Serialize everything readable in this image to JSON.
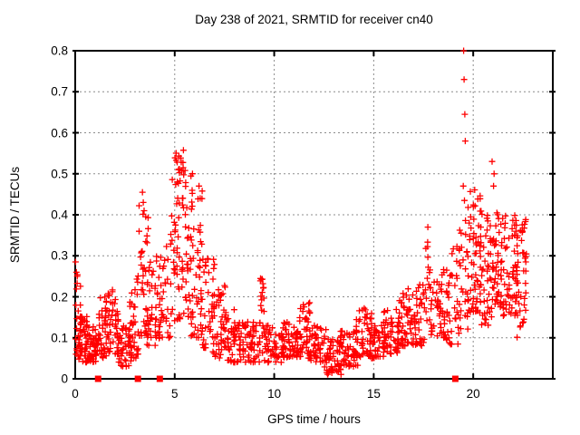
{
  "chart_data": {
    "type": "scatter",
    "title": "Day 238 of 2021, SRMTID for receiver cn40",
    "xlabel": "GPS time / hours",
    "ylabel": "SRMTID / TECUs",
    "xlim": [
      0,
      24
    ],
    "ylim": [
      0,
      0.8
    ],
    "xticks": [
      0,
      5,
      10,
      15,
      20
    ],
    "xtick_labels": [
      "0",
      "5",
      "10",
      "15",
      "20"
    ],
    "yticks": [
      0,
      0.1,
      0.2,
      0.3,
      0.4,
      0.5,
      0.6,
      0.7,
      0.8
    ],
    "ytick_labels": [
      "0",
      "0.1",
      "0.2",
      "0.3",
      "0.4",
      "0.5",
      "0.6",
      "0.7",
      "0.8"
    ],
    "grid": true,
    "grid_color": "#8c8c8c",
    "frame_color": "#000000",
    "marker": "plus",
    "marker_color": "#ff0000",
    "legend": "none",
    "series": [
      {
        "name": "SRMTID scatter",
        "marker": "plus",
        "bands_format": [
          "x_start",
          "x_end",
          "y_min",
          "y_max",
          "count",
          "low_bias_exponent"
        ],
        "bands": [
          [
            0.0,
            0.3,
            0.06,
            0.26,
            25,
            1.6
          ],
          [
            0.1,
            0.6,
            0.04,
            0.16,
            40,
            1.3
          ],
          [
            0.5,
            1.1,
            0.04,
            0.13,
            50,
            1.2
          ],
          [
            1.0,
            1.6,
            0.05,
            0.2,
            40,
            1.5
          ],
          [
            1.5,
            2.2,
            0.06,
            0.22,
            55,
            1.4
          ],
          [
            2.1,
            2.8,
            0.03,
            0.13,
            45,
            1.2
          ],
          [
            2.7,
            3.2,
            0.05,
            0.27,
            35,
            1.6
          ],
          [
            3.2,
            3.7,
            0.1,
            0.44,
            40,
            1.8
          ],
          [
            3.6,
            4.3,
            0.08,
            0.3,
            40,
            1.5
          ],
          [
            4.2,
            4.8,
            0.1,
            0.33,
            35,
            1.4
          ],
          [
            4.8,
            5.3,
            0.14,
            0.5,
            35,
            1.5
          ],
          [
            4.95,
            5.45,
            0.5,
            0.57,
            12,
            1.0
          ],
          [
            5.2,
            5.9,
            0.15,
            0.52,
            50,
            1.5
          ],
          [
            5.8,
            6.4,
            0.1,
            0.47,
            40,
            1.6
          ],
          [
            6.3,
            7.0,
            0.07,
            0.3,
            40,
            1.5
          ],
          [
            6.9,
            7.6,
            0.05,
            0.24,
            45,
            1.4
          ],
          [
            7.5,
            8.3,
            0.04,
            0.17,
            50,
            1.3
          ],
          [
            8.2,
            9.3,
            0.04,
            0.14,
            60,
            1.2
          ],
          [
            9.3,
            9.5,
            0.14,
            0.25,
            12,
            1.0
          ],
          [
            9.4,
            10.5,
            0.04,
            0.13,
            60,
            1.2
          ],
          [
            10.4,
            11.2,
            0.05,
            0.14,
            50,
            1.2
          ],
          [
            11.1,
            11.8,
            0.05,
            0.19,
            45,
            1.4
          ],
          [
            11.7,
            12.6,
            0.04,
            0.13,
            50,
            1.2
          ],
          [
            12.5,
            13.4,
            0.01,
            0.1,
            55,
            1.1
          ],
          [
            13.3,
            14.2,
            0.03,
            0.12,
            55,
            1.2
          ],
          [
            14.1,
            14.9,
            0.05,
            0.18,
            45,
            1.4
          ],
          [
            14.8,
            15.6,
            0.05,
            0.13,
            45,
            1.2
          ],
          [
            15.5,
            16.3,
            0.06,
            0.17,
            45,
            1.3
          ],
          [
            16.2,
            17.0,
            0.08,
            0.22,
            45,
            1.4
          ],
          [
            16.9,
            17.6,
            0.08,
            0.23,
            40,
            1.4
          ],
          [
            17.6,
            17.85,
            0.14,
            0.36,
            12,
            1.2
          ],
          [
            17.8,
            18.6,
            0.1,
            0.26,
            45,
            1.4
          ],
          [
            18.5,
            19.3,
            0.08,
            0.33,
            40,
            1.5
          ],
          [
            19.2,
            19.8,
            0.12,
            0.42,
            30,
            1.4
          ],
          [
            19.7,
            20.4,
            0.16,
            0.47,
            55,
            1.3
          ],
          [
            20.3,
            21.0,
            0.13,
            0.44,
            50,
            1.3
          ],
          [
            20.9,
            21.6,
            0.17,
            0.42,
            50,
            1.3
          ],
          [
            21.5,
            22.2,
            0.15,
            0.4,
            50,
            1.3
          ],
          [
            22.1,
            22.7,
            0.1,
            0.39,
            45,
            1.1
          ]
        ],
        "outlier_points": [
          [
            0.02,
            0.285
          ],
          [
            0.06,
            0.26
          ],
          [
            0.1,
            0.25
          ],
          [
            3.38,
            0.455
          ],
          [
            3.42,
            0.43
          ],
          [
            3.46,
            0.41
          ],
          [
            6.22,
            0.47
          ],
          [
            6.28,
            0.44
          ],
          [
            9.4,
            0.243
          ],
          [
            9.43,
            0.232
          ],
          [
            17.72,
            0.37
          ],
          [
            19.52,
            0.8
          ],
          [
            19.54,
            0.73
          ],
          [
            19.58,
            0.645
          ],
          [
            19.6,
            0.58
          ],
          [
            19.5,
            0.47
          ],
          [
            19.56,
            0.435
          ],
          [
            20.95,
            0.53
          ],
          [
            21.02,
            0.47
          ],
          [
            21.05,
            0.5
          ]
        ]
      },
      {
        "name": "baseline flags",
        "marker": "filled-square",
        "y": 0,
        "x": [
          1.15,
          3.15,
          4.25,
          19.1
        ]
      }
    ]
  }
}
